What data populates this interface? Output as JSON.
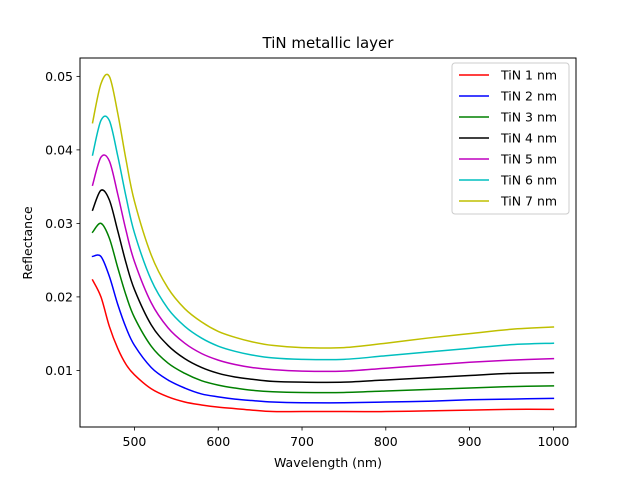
{
  "chart_data": {
    "type": "line",
    "title": "TiN metallic layer",
    "xlabel": "Wavelength (nm)",
    "ylabel": "Reflectance",
    "xlim": [
      435,
      1027
    ],
    "ylim": [
      0.0023,
      0.0525
    ],
    "xticks": [
      500,
      600,
      700,
      800,
      900,
      1000
    ],
    "yticks": [
      0.01,
      0.02,
      0.03,
      0.04,
      0.05
    ],
    "xtick_labels": [
      "500",
      "600",
      "700",
      "800",
      "900",
      "1000"
    ],
    "ytick_labels": [
      "0.01",
      "0.02",
      "0.03",
      "0.04",
      "0.05"
    ],
    "grid": false,
    "legend_position": "top-right",
    "x": [
      450,
      460,
      470,
      480,
      490,
      500,
      520,
      540,
      560,
      580,
      600,
      620,
      640,
      665,
      700,
      750,
      800,
      850,
      900,
      950,
      1000
    ],
    "series": [
      {
        "name": "TiN 1 nm",
        "color": "#ff0000",
        "values": [
          0.0223,
          0.02,
          0.016,
          0.013,
          0.0108,
          0.0094,
          0.0075,
          0.0064,
          0.0057,
          0.0053,
          0.005,
          0.0048,
          0.0046,
          0.0044,
          0.0044,
          0.0044,
          0.0044,
          0.0045,
          0.0046,
          0.0047,
          0.0047
        ]
      },
      {
        "name": "TiN 2 nm",
        "color": "#0000ff",
        "values": [
          0.0255,
          0.0255,
          0.0228,
          0.019,
          0.0158,
          0.0134,
          0.0104,
          0.0087,
          0.0076,
          0.0068,
          0.0064,
          0.0061,
          0.0059,
          0.0057,
          0.0056,
          0.0056,
          0.0057,
          0.0058,
          0.006,
          0.0061,
          0.0062
        ]
      },
      {
        "name": "TiN 3 nm",
        "color": "#008000",
        "values": [
          0.0288,
          0.03,
          0.028,
          0.024,
          0.0202,
          0.0172,
          0.0133,
          0.011,
          0.0096,
          0.0086,
          0.008,
          0.0076,
          0.0073,
          0.0071,
          0.007,
          0.007,
          0.0072,
          0.0074,
          0.0076,
          0.0078,
          0.0079
        ]
      },
      {
        "name": "TiN 4 nm",
        "color": "#000000",
        "values": [
          0.0318,
          0.0345,
          0.0332,
          0.029,
          0.0246,
          0.021,
          0.0162,
          0.0134,
          0.0116,
          0.0104,
          0.0096,
          0.0091,
          0.0088,
          0.0085,
          0.0084,
          0.0084,
          0.0087,
          0.009,
          0.0093,
          0.0096,
          0.0097
        ]
      },
      {
        "name": "TiN 5 nm",
        "color": "#bf00bf",
        "values": [
          0.0352,
          0.039,
          0.0385,
          0.034,
          0.029,
          0.0248,
          0.0192,
          0.0158,
          0.0137,
          0.0123,
          0.0114,
          0.0108,
          0.0104,
          0.0101,
          0.0099,
          0.0099,
          0.0103,
          0.0107,
          0.0111,
          0.0114,
          0.0116
        ]
      },
      {
        "name": "TiN 6 nm",
        "color": "#00bfbf",
        "values": [
          0.0393,
          0.044,
          0.044,
          0.0392,
          0.0336,
          0.0287,
          0.0223,
          0.0184,
          0.016,
          0.0144,
          0.0133,
          0.0126,
          0.0121,
          0.0117,
          0.0115,
          0.0115,
          0.012,
          0.0125,
          0.013,
          0.0135,
          0.0137
        ]
      },
      {
        "name": "TiN 7 nm",
        "color": "#bfbf00",
        "values": [
          0.0437,
          0.049,
          0.05,
          0.045,
          0.0386,
          0.033,
          0.0257,
          0.0212,
          0.0184,
          0.0166,
          0.0153,
          0.0145,
          0.0139,
          0.0134,
          0.0131,
          0.0131,
          0.0137,
          0.0144,
          0.015,
          0.0156,
          0.0159
        ]
      }
    ]
  }
}
